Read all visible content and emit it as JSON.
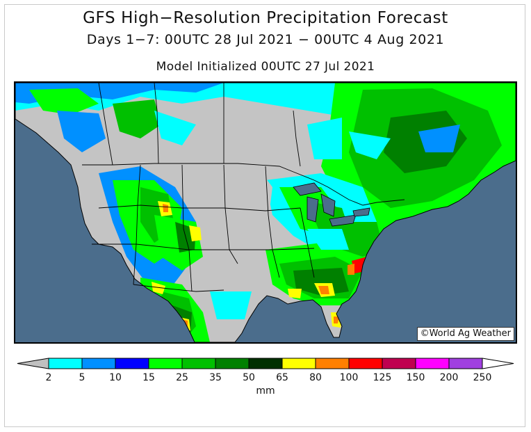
{
  "title": {
    "line1": "GFS High−Resolution Precipitation Forecast",
    "line2": "Days 1−7: 00UTC 28 Jul 2021 − 00UTC 4 Aug 2021",
    "line3": "Model Initialized 00UTC 27 Jul 2021"
  },
  "map": {
    "ocean_color": "#4b6d8c",
    "land_dry_color": "#c4c4c4",
    "copyright": "World Ag Weather"
  },
  "legend": {
    "unit": "mm",
    "left_arrow_color": "#c0c0c0",
    "right_arrow_color": "#ffffff",
    "ticks": [
      "2",
      "5",
      "10",
      "15",
      "25",
      "35",
      "50",
      "65",
      "80",
      "100",
      "125",
      "150",
      "200",
      "250"
    ],
    "bins": [
      {
        "color": "#00ffff"
      },
      {
        "color": "#0090ff"
      },
      {
        "color": "#0000ff"
      },
      {
        "color": "#00ff00"
      },
      {
        "color": "#00c000"
      },
      {
        "color": "#008000"
      },
      {
        "color": "#003000"
      },
      {
        "color": "#ffff00"
      },
      {
        "color": "#ff8000"
      },
      {
        "color": "#ff0000"
      },
      {
        "color": "#c00050"
      },
      {
        "color": "#ff00ff"
      },
      {
        "color": "#a040e0"
      }
    ]
  }
}
